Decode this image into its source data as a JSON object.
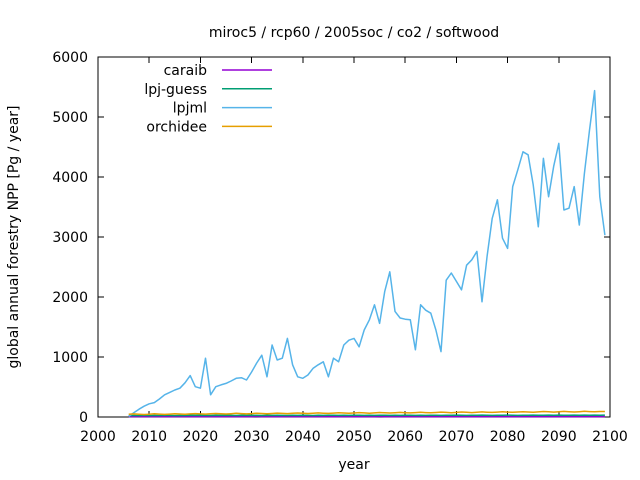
{
  "chart_data": {
    "type": "line",
    "title": "miroc5 / rcp60 / 2005soc / co2 / softwood",
    "xlabel": "year",
    "ylabel": "global annual forestry NPP [Pg / year]",
    "xlim": [
      2000,
      2100
    ],
    "ylim": [
      0,
      6000
    ],
    "xticks": [
      2000,
      2010,
      2020,
      2030,
      2040,
      2050,
      2060,
      2070,
      2080,
      2090,
      2100
    ],
    "yticks": [
      0,
      1000,
      2000,
      3000,
      4000,
      5000,
      6000
    ],
    "grid": false,
    "legend_position": "top-left-inside",
    "background_color": "#ffffff",
    "axis_color": "#000000",
    "x": [
      2006,
      2007,
      2008,
      2009,
      2010,
      2011,
      2012,
      2013,
      2014,
      2015,
      2016,
      2017,
      2018,
      2019,
      2020,
      2021,
      2022,
      2023,
      2024,
      2025,
      2026,
      2027,
      2028,
      2029,
      2030,
      2031,
      2032,
      2033,
      2034,
      2035,
      2036,
      2037,
      2038,
      2039,
      2040,
      2041,
      2042,
      2043,
      2044,
      2045,
      2046,
      2047,
      2048,
      2049,
      2050,
      2051,
      2052,
      2053,
      2054,
      2055,
      2056,
      2057,
      2058,
      2059,
      2060,
      2061,
      2062,
      2063,
      2064,
      2065,
      2066,
      2067,
      2068,
      2069,
      2070,
      2071,
      2072,
      2073,
      2074,
      2075,
      2076,
      2077,
      2078,
      2079,
      2080,
      2081,
      2082,
      2083,
      2084,
      2085,
      2086,
      2087,
      2088,
      2089,
      2090,
      2091,
      2092,
      2093,
      2094,
      2095,
      2096,
      2097,
      2098,
      2099
    ],
    "series": [
      {
        "name": "caraib",
        "color": "#9400d3",
        "values": [
          6,
          8,
          7,
          9,
          6,
          8,
          7,
          9,
          6,
          8,
          7,
          9,
          6,
          8,
          7,
          9,
          6,
          8,
          7,
          9,
          6,
          8,
          7,
          9,
          6,
          8,
          7,
          9,
          6,
          8,
          7,
          9,
          6,
          8,
          7,
          9,
          6,
          8,
          7,
          9,
          6,
          8,
          7,
          9,
          6,
          8,
          7,
          9,
          6,
          8,
          7,
          9,
          6,
          8,
          7,
          9,
          6,
          8,
          7,
          9,
          6,
          8,
          7,
          9,
          6,
          8,
          7,
          9,
          6,
          8,
          7,
          9,
          6,
          8,
          7,
          9,
          6,
          8,
          7,
          9,
          6,
          8,
          7,
          9,
          6,
          8,
          7,
          9,
          6,
          8,
          7,
          9,
          6,
          8
        ]
      },
      {
        "name": "lpj-guess",
        "color": "#009e73",
        "values": [
          22,
          26,
          23,
          28,
          24,
          27,
          25,
          29,
          26,
          24,
          27,
          25,
          28,
          26,
          29,
          27,
          25,
          28,
          26,
          29,
          27,
          25,
          28,
          26,
          29,
          27,
          25,
          28,
          26,
          29,
          27,
          25,
          28,
          26,
          29,
          27,
          25,
          28,
          26,
          29,
          28,
          26,
          29,
          27,
          30,
          28,
          26,
          29,
          27,
          30,
          28,
          26,
          29,
          27,
          30,
          28,
          26,
          29,
          27,
          30,
          29,
          27,
          30,
          28,
          31,
          29,
          27,
          30,
          28,
          31,
          29,
          27,
          30,
          28,
          31,
          29,
          27,
          30,
          28,
          31,
          30,
          28,
          31,
          29,
          32,
          30,
          28,
          31,
          29,
          32,
          30,
          31,
          29,
          32
        ]
      },
      {
        "name": "lpjml",
        "color": "#56b4e9",
        "values": [
          10,
          70,
          130,
          180,
          220,
          240,
          300,
          370,
          410,
          450,
          480,
          570,
          690,
          505,
          480,
          980,
          370,
          505,
          535,
          560,
          600,
          645,
          655,
          617,
          750,
          900,
          1030,
          670,
          1200,
          950,
          980,
          1310,
          870,
          670,
          645,
          700,
          810,
          870,
          920,
          670,
          980,
          920,
          1200,
          1280,
          1310,
          1170,
          1450,
          1620,
          1870,
          1560,
          2090,
          2420,
          1760,
          1650,
          1630,
          1620,
          1120,
          1870,
          1780,
          1730,
          1450,
          1090,
          2280,
          2400,
          2260,
          2120,
          2530,
          2620,
          2760,
          1920,
          2680,
          3310,
          3620,
          2980,
          2810,
          3840,
          4120,
          4420,
          4370,
          3870,
          3170,
          4310,
          3670,
          4180,
          4560,
          3450,
          3480,
          3840,
          3200,
          4060,
          4780,
          5440,
          3670,
          3030
        ]
      },
      {
        "name": "orchidee",
        "color": "#e69f00",
        "values": [
          45,
          51,
          46,
          42,
          47,
          53,
          48,
          44,
          49,
          55,
          50,
          46,
          51,
          57,
          52,
          48,
          53,
          59,
          54,
          50,
          55,
          61,
          56,
          52,
          57,
          63,
          58,
          54,
          59,
          65,
          60,
          56,
          61,
          67,
          62,
          58,
          63,
          69,
          64,
          60,
          65,
          71,
          66,
          62,
          67,
          73,
          68,
          64,
          69,
          75,
          70,
          66,
          71,
          77,
          72,
          68,
          73,
          79,
          74,
          70,
          75,
          81,
          76,
          72,
          77,
          83,
          78,
          74,
          79,
          85,
          80,
          76,
          81,
          87,
          82,
          78,
          83,
          89,
          84,
          80,
          85,
          91,
          86,
          82,
          87,
          93,
          88,
          84,
          89,
          95,
          90,
          86,
          91,
          92
        ]
      }
    ]
  }
}
